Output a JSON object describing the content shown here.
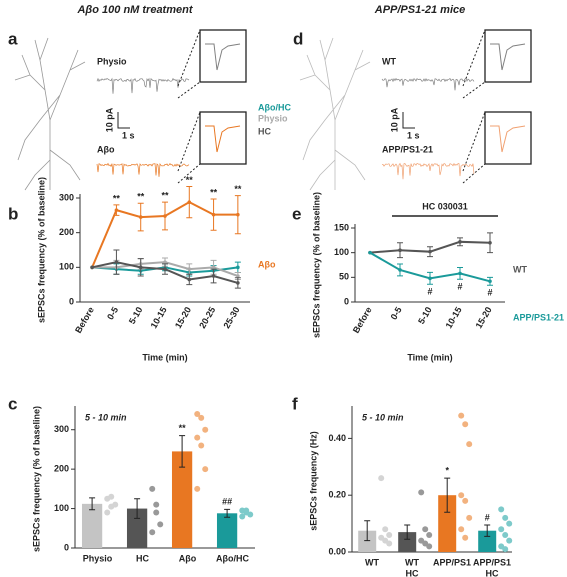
{
  "figure": {
    "panels": [
      {
        "label": "a",
        "title": "Aβo 100 nM treatment",
        "traces": [
          "Physio",
          "Aβo"
        ],
        "scale_current": "10 pA",
        "scale_time": "1 s"
      },
      {
        "label": "d",
        "title": "APP/PS1-21 mice",
        "traces": [
          "WT",
          "APP/PS1-21"
        ],
        "scale_current": "10 pA",
        "scale_time": "1 s"
      }
    ]
  },
  "chart_data": [
    {
      "type": "line",
      "panel_label": "b",
      "ylabel": "sEPSCs frequency (% of baseline)",
      "xlabel": "Time (min)",
      "categories": [
        "Before",
        "0-5",
        "5-10",
        "10-15",
        "15-20",
        "20-25",
        "25-30"
      ],
      "ylim": [
        0,
        300
      ],
      "yticks": [
        0,
        100,
        200,
        300
      ],
      "series": [
        {
          "name": "Aβo",
          "color": "#e87722",
          "values": [
            100,
            265,
            245,
            248,
            288,
            252,
            252
          ],
          "errors": [
            null,
            15,
            40,
            40,
            45,
            45,
            55
          ],
          "significance": [
            null,
            "**",
            "**",
            "**",
            "**",
            "**",
            "**"
          ]
        },
        {
          "name": "Aβo/HC",
          "color": "#1a9a9a",
          "values": [
            100,
            95,
            90,
            100,
            85,
            90,
            100
          ],
          "errors": [
            null,
            15,
            10,
            10,
            10,
            15,
            15
          ]
        },
        {
          "name": "Physio",
          "color": "#aaaaaa",
          "values": [
            100,
            100,
            110,
            115,
            95,
            100,
            75
          ],
          "errors": [
            null,
            20,
            15,
            12,
            15,
            20,
            10
          ]
        },
        {
          "name": "HC",
          "color": "#555555",
          "values": [
            100,
            115,
            100,
            95,
            65,
            75,
            55
          ],
          "errors": [
            null,
            35,
            25,
            15,
            15,
            20,
            15
          ]
        }
      ]
    },
    {
      "type": "bar",
      "panel_label": "c",
      "annotation": "5 - 10 min",
      "ylabel": "sEPSCs frequency (% of baseline)",
      "categories": [
        [
          "Physio"
        ],
        [
          "HC"
        ],
        [
          "Aβo"
        ],
        [
          "Aβo/HC"
        ]
      ],
      "values": [
        112,
        100,
        245,
        88
      ],
      "errors": [
        15,
        25,
        40,
        10
      ],
      "colors": [
        "#c4c4c4",
        "#555555",
        "#e87722",
        "#1a9a9a"
      ],
      "point_colors": [
        "#d4d4d4",
        "#999999",
        "#f2b27f",
        "#7dcaca"
      ],
      "significance": [
        null,
        null,
        "**",
        "##"
      ],
      "points": [
        [
          125,
          130,
          110,
          90,
          105
        ],
        [
          150,
          90,
          60,
          40,
          110
        ],
        [
          340,
          330,
          300,
          280,
          260,
          200,
          150
        ],
        [
          95,
          90,
          85,
          80,
          95
        ]
      ],
      "ylim": [
        0,
        350
      ],
      "yticks": [
        0,
        100,
        200,
        300
      ]
    },
    {
      "type": "line",
      "panel_label": "e",
      "ylabel": "sEPSCs frequency (% of baseline)",
      "xlabel": "Time (min)",
      "treatment_bar": "HC 030031",
      "categories": [
        "Before",
        "0-5",
        "5-10",
        "10-15",
        "15-20"
      ],
      "ylim": [
        0,
        150
      ],
      "yticks": [
        0,
        50,
        100,
        150
      ],
      "series": [
        {
          "name": "WT",
          "color": "#555555",
          "values": [
            100,
            105,
            102,
            122,
            120
          ],
          "errors": [
            null,
            15,
            10,
            8,
            20
          ]
        },
        {
          "name": "APP/PS1-21",
          "color": "#1a9a9a",
          "values": [
            100,
            65,
            48,
            58,
            42
          ],
          "errors": [
            null,
            12,
            12,
            12,
            8
          ],
          "significance": [
            null,
            null,
            "#",
            "#",
            "#"
          ]
        }
      ]
    },
    {
      "type": "bar",
      "panel_label": "f",
      "annotation": "5 - 10 min",
      "ylabel": "sEPSCs frequency (Hz)",
      "categories": [
        [
          "WT"
        ],
        [
          "WT",
          "HC"
        ],
        [
          "APP/PS1"
        ],
        [
          "APP/PS1",
          "HC"
        ]
      ],
      "values": [
        0.075,
        0.07,
        0.2,
        0.075
      ],
      "errors": [
        0.035,
        0.025,
        0.06,
        0.02
      ],
      "colors": [
        "#c4c4c4",
        "#555555",
        "#e87722",
        "#1a9a9a"
      ],
      "point_colors": [
        "#d4d4d4",
        "#999999",
        "#f2b27f",
        "#7dcaca"
      ],
      "significance": [
        null,
        null,
        "*",
        "#"
      ],
      "points": [
        [
          0.26,
          0.08,
          0.06,
          0.05,
          0.04,
          0.03
        ],
        [
          0.21,
          0.08,
          0.06,
          0.04,
          0.03,
          0.02
        ],
        [
          0.48,
          0.45,
          0.38,
          0.2,
          0.18,
          0.12,
          0.08,
          0.05
        ],
        [
          0.15,
          0.12,
          0.1,
          0.08,
          0.06,
          0.04,
          0.02,
          0.01
        ]
      ],
      "ylim": [
        0,
        0.5
      ],
      "yticks": [
        {
          "value": 0,
          "label": "0.00"
        },
        {
          "value": 0.2,
          "label": "0.20"
        },
        {
          "value": 0.4,
          "label": "0.40"
        }
      ]
    }
  ]
}
